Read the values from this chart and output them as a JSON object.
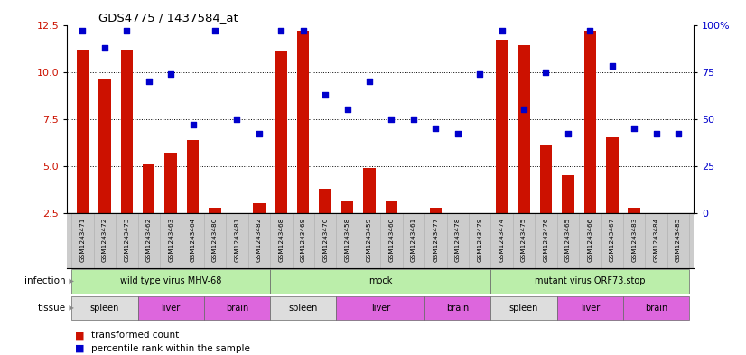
{
  "title": "GDS4775 / 1437584_at",
  "samples": [
    "GSM1243471",
    "GSM1243472",
    "GSM1243473",
    "GSM1243462",
    "GSM1243463",
    "GSM1243464",
    "GSM1243480",
    "GSM1243481",
    "GSM1243482",
    "GSM1243468",
    "GSM1243469",
    "GSM1243470",
    "GSM1243458",
    "GSM1243459",
    "GSM1243460",
    "GSM1243461",
    "GSM1243477",
    "GSM1243478",
    "GSM1243479",
    "GSM1243474",
    "GSM1243475",
    "GSM1243476",
    "GSM1243465",
    "GSM1243466",
    "GSM1243467",
    "GSM1243483",
    "GSM1243484",
    "GSM1243485"
  ],
  "bar_values": [
    11.2,
    9.6,
    11.2,
    5.1,
    5.7,
    6.4,
    2.8,
    2.5,
    3.0,
    11.1,
    12.2,
    3.8,
    3.1,
    4.9,
    3.1,
    2.5,
    2.8,
    2.5,
    2.5,
    11.7,
    11.4,
    6.1,
    4.5,
    12.2,
    6.5,
    2.8,
    2.5,
    2.5
  ],
  "dot_pct_values": [
    97,
    88,
    97,
    70,
    74,
    47,
    97,
    50,
    42,
    97,
    97,
    63,
    55,
    70,
    50,
    50,
    45,
    42,
    74,
    97,
    55,
    75,
    42,
    97,
    78,
    45,
    42,
    42
  ],
  "ylim_left": [
    2.5,
    12.5
  ],
  "ylim_right": [
    0,
    100
  ],
  "yticks_left": [
    2.5,
    5.0,
    7.5,
    10.0,
    12.5
  ],
  "yticks_right": [
    0,
    25,
    50,
    75,
    100
  ],
  "bar_color": "#cc1100",
  "dot_color": "#0000cc",
  "infection_groups": [
    {
      "label": "wild type virus MHV-68",
      "start": 0,
      "end": 9
    },
    {
      "label": "mock",
      "start": 9,
      "end": 19
    },
    {
      "label": "mutant virus ORF73.stop",
      "start": 19,
      "end": 28
    }
  ],
  "tissue_groups": [
    {
      "label": "spleen",
      "start": 0,
      "end": 3,
      "tissue": "spleen"
    },
    {
      "label": "liver",
      "start": 3,
      "end": 6,
      "tissue": "liver"
    },
    {
      "label": "brain",
      "start": 6,
      "end": 9,
      "tissue": "brain"
    },
    {
      "label": "spleen",
      "start": 9,
      "end": 12,
      "tissue": "spleen"
    },
    {
      "label": "liver",
      "start": 12,
      "end": 16,
      "tissue": "liver"
    },
    {
      "label": "brain",
      "start": 16,
      "end": 19,
      "tissue": "brain"
    },
    {
      "label": "spleen",
      "start": 19,
      "end": 22,
      "tissue": "spleen"
    },
    {
      "label": "liver",
      "start": 22,
      "end": 25,
      "tissue": "liver"
    },
    {
      "label": "brain",
      "start": 25,
      "end": 28,
      "tissue": "brain"
    }
  ],
  "spleen_color": "#dddddd",
  "liver_color": "#dd66dd",
  "brain_color": "#dd66dd",
  "infection_color": "#bbeeaa",
  "xtick_bg_color": "#cccccc",
  "legend_bar_label": "transformed count",
  "legend_dot_label": "percentile rank within the sample",
  "infection_row_label": "infection",
  "tissue_row_label": "tissue",
  "fig_bg": "#ffffff",
  "arrow_color": "#888888"
}
